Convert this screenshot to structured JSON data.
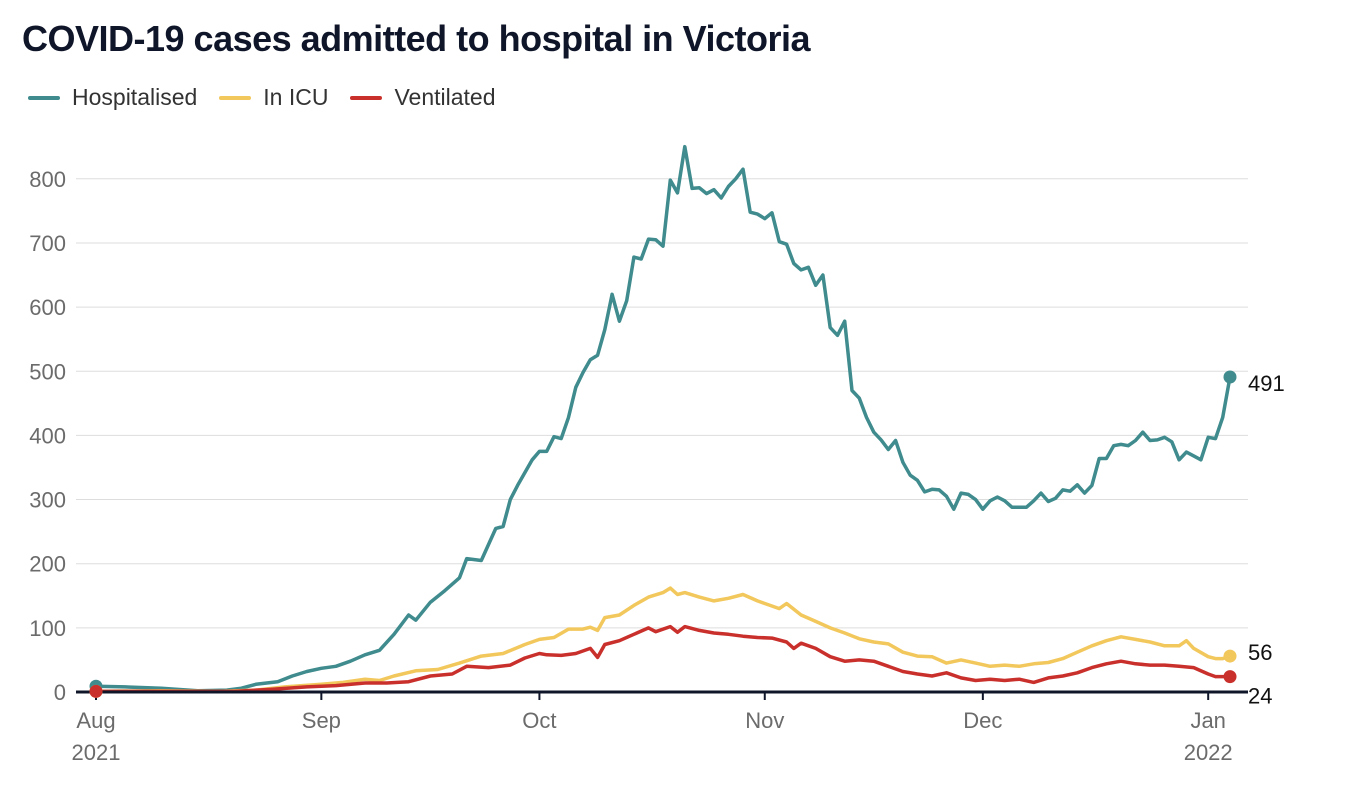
{
  "chart_data": {
    "type": "line",
    "title": "COVID-19 cases admitted to hospital in Victoria",
    "xlabel": "",
    "ylabel": "",
    "ylim": [
      0,
      850
    ],
    "yticks": [
      "0",
      "100",
      "200",
      "300",
      "400",
      "500",
      "600",
      "700",
      "800"
    ],
    "ytick_values": [
      0,
      100,
      200,
      300,
      400,
      500,
      600,
      700,
      800
    ],
    "xticks": [
      {
        "date": "2021-08-01",
        "line1": "Aug",
        "line2": "2021"
      },
      {
        "date": "2021-09-01",
        "line1": "Sep",
        "line2": ""
      },
      {
        "date": "2021-10-01",
        "line1": "Oct",
        "line2": ""
      },
      {
        "date": "2021-11-01",
        "line1": "Nov",
        "line2": ""
      },
      {
        "date": "2021-12-01",
        "line1": "Dec",
        "line2": ""
      },
      {
        "date": "2022-01-01",
        "line1": "Jan",
        "line2": "2022"
      }
    ],
    "xrange": [
      "2021-08-01",
      "2022-01-04"
    ],
    "legend": "top-left",
    "grid": true,
    "series": [
      {
        "name": "Hospitalised",
        "color": "#3f8b8d",
        "end_label": "491",
        "points": [
          [
            "2021-08-01",
            9
          ],
          [
            "2021-08-05",
            8
          ],
          [
            "2021-08-10",
            6
          ],
          [
            "2021-08-15",
            2
          ],
          [
            "2021-08-19",
            3
          ],
          [
            "2021-08-21",
            6
          ],
          [
            "2021-08-23",
            12
          ],
          [
            "2021-08-26",
            16
          ],
          [
            "2021-08-28",
            25
          ],
          [
            "2021-08-30",
            32
          ],
          [
            "2021-09-01",
            37
          ],
          [
            "2021-09-03",
            40
          ],
          [
            "2021-09-05",
            48
          ],
          [
            "2021-09-07",
            58
          ],
          [
            "2021-09-09",
            65
          ],
          [
            "2021-09-11",
            90
          ],
          [
            "2021-09-13",
            120
          ],
          [
            "2021-09-14",
            112
          ],
          [
            "2021-09-16",
            140
          ],
          [
            "2021-09-18",
            158
          ],
          [
            "2021-09-20",
            178
          ],
          [
            "2021-09-21",
            208
          ],
          [
            "2021-09-23",
            205
          ],
          [
            "2021-09-25",
            255
          ],
          [
            "2021-09-26",
            258
          ],
          [
            "2021-09-27",
            300
          ],
          [
            "2021-09-28",
            322
          ],
          [
            "2021-09-30",
            362
          ],
          [
            "2021-10-01",
            375
          ],
          [
            "2021-10-02",
            375
          ],
          [
            "2021-10-03",
            398
          ],
          [
            "2021-10-04",
            395
          ],
          [
            "2021-10-05",
            428
          ],
          [
            "2021-10-06",
            475
          ],
          [
            "2021-10-07",
            498
          ],
          [
            "2021-10-08",
            518
          ],
          [
            "2021-10-09",
            525
          ],
          [
            "2021-10-10",
            565
          ],
          [
            "2021-10-11",
            620
          ],
          [
            "2021-10-12",
            578
          ],
          [
            "2021-10-13",
            610
          ],
          [
            "2021-10-14",
            678
          ],
          [
            "2021-10-15",
            675
          ],
          [
            "2021-10-16",
            706
          ],
          [
            "2021-10-17",
            705
          ],
          [
            "2021-10-18",
            695
          ],
          [
            "2021-10-19",
            798
          ],
          [
            "2021-10-20",
            778
          ],
          [
            "2021-10-21",
            850
          ],
          [
            "2021-10-22",
            785
          ],
          [
            "2021-10-23",
            786
          ],
          [
            "2021-10-24",
            777
          ],
          [
            "2021-10-25",
            783
          ],
          [
            "2021-10-26",
            770
          ],
          [
            "2021-10-27",
            788
          ],
          [
            "2021-10-28",
            800
          ],
          [
            "2021-10-29",
            815
          ],
          [
            "2021-10-30",
            748
          ],
          [
            "2021-10-31",
            745
          ],
          [
            "2021-11-01",
            738
          ],
          [
            "2021-11-02",
            747
          ],
          [
            "2021-11-03",
            702
          ],
          [
            "2021-11-04",
            698
          ],
          [
            "2021-11-05",
            668
          ],
          [
            "2021-11-06",
            658
          ],
          [
            "2021-11-07",
            662
          ],
          [
            "2021-11-08",
            634
          ],
          [
            "2021-11-09",
            650
          ],
          [
            "2021-11-10",
            568
          ],
          [
            "2021-11-11",
            556
          ],
          [
            "2021-11-12",
            578
          ],
          [
            "2021-11-13",
            470
          ],
          [
            "2021-11-14",
            458
          ],
          [
            "2021-11-15",
            428
          ],
          [
            "2021-11-16",
            405
          ],
          [
            "2021-11-17",
            393
          ],
          [
            "2021-11-18",
            378
          ],
          [
            "2021-11-19",
            392
          ],
          [
            "2021-11-20",
            358
          ],
          [
            "2021-11-21",
            338
          ],
          [
            "2021-11-22",
            330
          ],
          [
            "2021-11-23",
            312
          ],
          [
            "2021-11-24",
            316
          ],
          [
            "2021-11-25",
            315
          ],
          [
            "2021-11-26",
            305
          ],
          [
            "2021-11-27",
            285
          ],
          [
            "2021-11-28",
            310
          ],
          [
            "2021-11-29",
            308
          ],
          [
            "2021-11-30",
            300
          ],
          [
            "2021-12-01",
            285
          ],
          [
            "2021-12-02",
            298
          ],
          [
            "2021-12-03",
            304
          ],
          [
            "2021-12-04",
            298
          ],
          [
            "2021-12-05",
            288
          ],
          [
            "2021-12-06",
            288
          ],
          [
            "2021-12-07",
            288
          ],
          [
            "2021-12-08",
            298
          ],
          [
            "2021-12-09",
            310
          ],
          [
            "2021-12-10",
            297
          ],
          [
            "2021-12-11",
            302
          ],
          [
            "2021-12-12",
            315
          ],
          [
            "2021-12-13",
            313
          ],
          [
            "2021-12-14",
            323
          ],
          [
            "2021-12-15",
            310
          ],
          [
            "2021-12-16",
            322
          ],
          [
            "2021-12-17",
            364
          ],
          [
            "2021-12-18",
            364
          ],
          [
            "2021-12-19",
            384
          ],
          [
            "2021-12-20",
            386
          ],
          [
            "2021-12-21",
            384
          ],
          [
            "2021-12-22",
            392
          ],
          [
            "2021-12-23",
            405
          ],
          [
            "2021-12-24",
            392
          ],
          [
            "2021-12-25",
            393
          ],
          [
            "2021-12-26",
            397
          ],
          [
            "2021-12-27",
            390
          ],
          [
            "2021-12-28",
            362
          ],
          [
            "2021-12-29",
            374
          ],
          [
            "2021-12-30",
            368
          ],
          [
            "2021-12-31",
            362
          ],
          [
            "2022-01-01",
            397
          ],
          [
            "2022-01-02",
            395
          ],
          [
            "2022-01-03",
            428
          ],
          [
            "2022-01-04",
            491
          ]
        ]
      },
      {
        "name": "In ICU",
        "color": "#f2c75c",
        "end_label": "56",
        "points": [
          [
            "2021-08-01",
            1
          ],
          [
            "2021-08-10",
            2
          ],
          [
            "2021-08-18",
            1
          ],
          [
            "2021-08-23",
            3
          ],
          [
            "2021-08-27",
            8
          ],
          [
            "2021-09-01",
            12
          ],
          [
            "2021-09-04",
            15
          ],
          [
            "2021-09-07",
            20
          ],
          [
            "2021-09-09",
            18
          ],
          [
            "2021-09-11",
            25
          ],
          [
            "2021-09-14",
            33
          ],
          [
            "2021-09-17",
            35
          ],
          [
            "2021-09-20",
            45
          ],
          [
            "2021-09-23",
            56
          ],
          [
            "2021-09-26",
            60
          ],
          [
            "2021-09-29",
            74
          ],
          [
            "2021-10-01",
            82
          ],
          [
            "2021-10-03",
            85
          ],
          [
            "2021-10-05",
            98
          ],
          [
            "2021-10-07",
            98
          ],
          [
            "2021-10-08",
            101
          ],
          [
            "2021-10-09",
            96
          ],
          [
            "2021-10-10",
            116
          ],
          [
            "2021-10-12",
            120
          ],
          [
            "2021-10-14",
            135
          ],
          [
            "2021-10-16",
            148
          ],
          [
            "2021-10-18",
            155
          ],
          [
            "2021-10-19",
            162
          ],
          [
            "2021-10-20",
            152
          ],
          [
            "2021-10-21",
            155
          ],
          [
            "2021-10-23",
            148
          ],
          [
            "2021-10-25",
            142
          ],
          [
            "2021-10-27",
            146
          ],
          [
            "2021-10-29",
            152
          ],
          [
            "2021-10-31",
            142
          ],
          [
            "2021-11-01",
            138
          ],
          [
            "2021-11-03",
            130
          ],
          [
            "2021-11-04",
            138
          ],
          [
            "2021-11-06",
            120
          ],
          [
            "2021-11-08",
            110
          ],
          [
            "2021-11-10",
            100
          ],
          [
            "2021-11-12",
            92
          ],
          [
            "2021-11-14",
            83
          ],
          [
            "2021-11-16",
            78
          ],
          [
            "2021-11-18",
            75
          ],
          [
            "2021-11-20",
            62
          ],
          [
            "2021-11-22",
            56
          ],
          [
            "2021-11-24",
            55
          ],
          [
            "2021-11-26",
            45
          ],
          [
            "2021-11-28",
            50
          ],
          [
            "2021-11-30",
            45
          ],
          [
            "2021-12-02",
            40
          ],
          [
            "2021-12-04",
            42
          ],
          [
            "2021-12-06",
            40
          ],
          [
            "2021-12-08",
            44
          ],
          [
            "2021-12-10",
            46
          ],
          [
            "2021-12-12",
            52
          ],
          [
            "2021-12-14",
            62
          ],
          [
            "2021-12-16",
            72
          ],
          [
            "2021-12-18",
            80
          ],
          [
            "2021-12-20",
            86
          ],
          [
            "2021-12-22",
            82
          ],
          [
            "2021-12-24",
            78
          ],
          [
            "2021-12-26",
            72
          ],
          [
            "2021-12-28",
            72
          ],
          [
            "2021-12-29",
            80
          ],
          [
            "2021-12-30",
            68
          ],
          [
            "2022-01-01",
            55
          ],
          [
            "2022-01-02",
            52
          ],
          [
            "2022-01-03",
            52
          ],
          [
            "2022-01-04",
            56
          ]
        ]
      },
      {
        "name": "Ventilated",
        "color": "#c9302c",
        "end_label": "24",
        "points": [
          [
            "2021-08-01",
            1
          ],
          [
            "2021-08-12",
            1
          ],
          [
            "2021-08-20",
            1
          ],
          [
            "2021-08-25",
            4
          ],
          [
            "2021-08-30",
            8
          ],
          [
            "2021-09-03",
            10
          ],
          [
            "2021-09-07",
            14
          ],
          [
            "2021-09-10",
            14
          ],
          [
            "2021-09-13",
            16
          ],
          [
            "2021-09-16",
            25
          ],
          [
            "2021-09-19",
            28
          ],
          [
            "2021-09-21",
            40
          ],
          [
            "2021-09-24",
            38
          ],
          [
            "2021-09-27",
            42
          ],
          [
            "2021-09-29",
            53
          ],
          [
            "2021-10-01",
            60
          ],
          [
            "2021-10-02",
            58
          ],
          [
            "2021-10-04",
            57
          ],
          [
            "2021-10-06",
            60
          ],
          [
            "2021-10-08",
            68
          ],
          [
            "2021-10-09",
            54
          ],
          [
            "2021-10-10",
            74
          ],
          [
            "2021-10-12",
            80
          ],
          [
            "2021-10-14",
            90
          ],
          [
            "2021-10-16",
            100
          ],
          [
            "2021-10-17",
            94
          ],
          [
            "2021-10-19",
            102
          ],
          [
            "2021-10-20",
            93
          ],
          [
            "2021-10-21",
            102
          ],
          [
            "2021-10-23",
            96
          ],
          [
            "2021-10-25",
            92
          ],
          [
            "2021-10-27",
            90
          ],
          [
            "2021-10-29",
            87
          ],
          [
            "2021-10-31",
            85
          ],
          [
            "2021-11-02",
            84
          ],
          [
            "2021-11-04",
            78
          ],
          [
            "2021-11-05",
            68
          ],
          [
            "2021-11-06",
            76
          ],
          [
            "2021-11-08",
            68
          ],
          [
            "2021-11-10",
            55
          ],
          [
            "2021-11-12",
            48
          ],
          [
            "2021-11-14",
            50
          ],
          [
            "2021-11-16",
            48
          ],
          [
            "2021-11-18",
            40
          ],
          [
            "2021-11-20",
            32
          ],
          [
            "2021-11-22",
            28
          ],
          [
            "2021-11-24",
            25
          ],
          [
            "2021-11-26",
            30
          ],
          [
            "2021-11-28",
            22
          ],
          [
            "2021-11-30",
            18
          ],
          [
            "2021-12-02",
            20
          ],
          [
            "2021-12-04",
            18
          ],
          [
            "2021-12-06",
            20
          ],
          [
            "2021-12-08",
            15
          ],
          [
            "2021-12-10",
            22
          ],
          [
            "2021-12-12",
            25
          ],
          [
            "2021-12-14",
            30
          ],
          [
            "2021-12-16",
            38
          ],
          [
            "2021-12-18",
            44
          ],
          [
            "2021-12-20",
            48
          ],
          [
            "2021-12-22",
            44
          ],
          [
            "2021-12-24",
            42
          ],
          [
            "2021-12-26",
            42
          ],
          [
            "2021-12-28",
            40
          ],
          [
            "2021-12-30",
            38
          ],
          [
            "2022-01-01",
            28
          ],
          [
            "2022-01-02",
            24
          ],
          [
            "2022-01-03",
            24
          ],
          [
            "2022-01-04",
            24
          ]
        ]
      }
    ]
  }
}
